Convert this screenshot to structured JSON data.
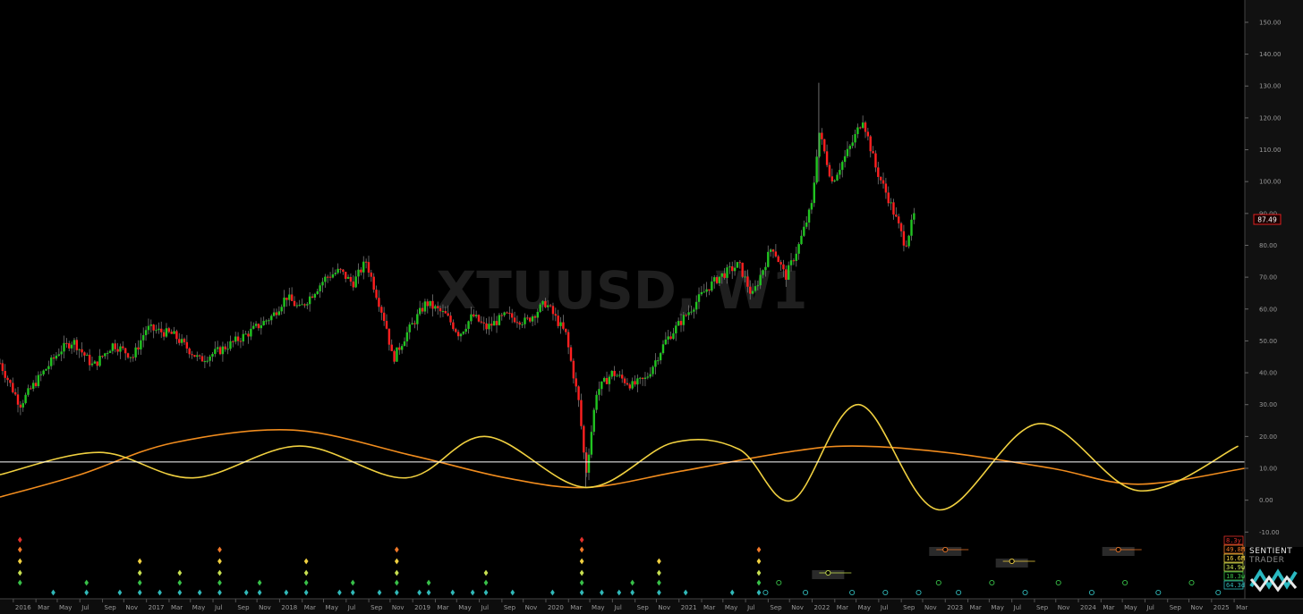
{
  "watermark": "XTUUSD, W1",
  "last_price": "87.49",
  "brand": {
    "line1": "SENTIENT",
    "line2": "TRADER"
  },
  "chart_data": {
    "type": "line",
    "symbol": "XTUUSD",
    "timeframe": "W1",
    "y_axis": {
      "side": "right",
      "ylim": [
        -13,
        157
      ],
      "ticks": [
        "150.00",
        "140.00",
        "130.00",
        "120.00",
        "110.00",
        "100.00",
        "90.00",
        "80.00",
        "70.00",
        "60.00",
        "50.00",
        "40.00",
        "30.00",
        "20.00",
        "10.00",
        "0.00",
        "-10.00"
      ]
    },
    "x_axis": {
      "range_years": [
        2015.9,
        2025.25
      ],
      "ticks": [
        {
          "t": 2016.0,
          "label": "2016"
        },
        {
          "t": 2016.17,
          "label": "Mar"
        },
        {
          "t": 2016.33,
          "label": "May"
        },
        {
          "t": 2016.5,
          "label": "Jul"
        },
        {
          "t": 2016.67,
          "label": "Sep"
        },
        {
          "t": 2016.83,
          "label": "Nov"
        },
        {
          "t": 2017.0,
          "label": "2017"
        },
        {
          "t": 2017.17,
          "label": "Mar"
        },
        {
          "t": 2017.33,
          "label": "May"
        },
        {
          "t": 2017.5,
          "label": "Jul"
        },
        {
          "t": 2017.67,
          "label": "Sep"
        },
        {
          "t": 2017.83,
          "label": "Nov"
        },
        {
          "t": 2018.0,
          "label": "2018"
        },
        {
          "t": 2018.17,
          "label": "Mar"
        },
        {
          "t": 2018.33,
          "label": "May"
        },
        {
          "t": 2018.5,
          "label": "Jul"
        },
        {
          "t": 2018.67,
          "label": "Sep"
        },
        {
          "t": 2018.83,
          "label": "Nov"
        },
        {
          "t": 2019.0,
          "label": "2019"
        },
        {
          "t": 2019.17,
          "label": "Mar"
        },
        {
          "t": 2019.33,
          "label": "May"
        },
        {
          "t": 2019.5,
          "label": "Jul"
        },
        {
          "t": 2019.67,
          "label": "Sep"
        },
        {
          "t": 2019.83,
          "label": "Nov"
        },
        {
          "t": 2020.0,
          "label": "2020"
        },
        {
          "t": 2020.17,
          "label": "Mar"
        },
        {
          "t": 2020.33,
          "label": "May"
        },
        {
          "t": 2020.5,
          "label": "Jul"
        },
        {
          "t": 2020.67,
          "label": "Sep"
        },
        {
          "t": 2020.83,
          "label": "Nov"
        },
        {
          "t": 2021.0,
          "label": "2021"
        },
        {
          "t": 2021.17,
          "label": "Mar"
        },
        {
          "t": 2021.33,
          "label": "May"
        },
        {
          "t": 2021.5,
          "label": "Jul"
        },
        {
          "t": 2021.67,
          "label": "Sep"
        },
        {
          "t": 2021.83,
          "label": "Nov"
        },
        {
          "t": 2022.0,
          "label": "2022"
        },
        {
          "t": 2022.17,
          "label": "Mar"
        },
        {
          "t": 2022.33,
          "label": "May"
        },
        {
          "t": 2022.5,
          "label": "Jul"
        },
        {
          "t": 2022.67,
          "label": "Sep"
        },
        {
          "t": 2022.83,
          "label": "Nov"
        },
        {
          "t": 2023.0,
          "label": "2023"
        },
        {
          "t": 2023.17,
          "label": "Mar"
        },
        {
          "t": 2023.33,
          "label": "May"
        },
        {
          "t": 2023.5,
          "label": "Jul"
        },
        {
          "t": 2023.67,
          "label": "Sep"
        },
        {
          "t": 2023.83,
          "label": "Nov"
        },
        {
          "t": 2024.0,
          "label": "2024"
        },
        {
          "t": 2024.17,
          "label": "Mar"
        },
        {
          "t": 2024.33,
          "label": "May"
        },
        {
          "t": 2024.5,
          "label": "Jul"
        },
        {
          "t": 2024.67,
          "label": "Sep"
        },
        {
          "t": 2024.83,
          "label": "Nov"
        },
        {
          "t": 2025.0,
          "label": "2025"
        },
        {
          "t": 2025.17,
          "label": "Mar"
        }
      ]
    },
    "price_anchors": [
      [
        2015.9,
        43
      ],
      [
        2016.05,
        30
      ],
      [
        2016.15,
        36
      ],
      [
        2016.35,
        47
      ],
      [
        2016.45,
        50
      ],
      [
        2016.6,
        42
      ],
      [
        2016.75,
        49
      ],
      [
        2016.9,
        45
      ],
      [
        2017.0,
        54
      ],
      [
        2017.2,
        52
      ],
      [
        2017.4,
        44
      ],
      [
        2017.55,
        47
      ],
      [
        2017.75,
        52
      ],
      [
        2017.95,
        58
      ],
      [
        2018.05,
        64
      ],
      [
        2018.15,
        60
      ],
      [
        2018.35,
        70
      ],
      [
        2018.45,
        72
      ],
      [
        2018.55,
        68
      ],
      [
        2018.65,
        75
      ],
      [
        2018.8,
        55
      ],
      [
        2018.85,
        44
      ],
      [
        2018.95,
        52
      ],
      [
        2019.1,
        62
      ],
      [
        2019.25,
        58
      ],
      [
        2019.35,
        52
      ],
      [
        2019.45,
        58
      ],
      [
        2019.55,
        54
      ],
      [
        2019.7,
        58
      ],
      [
        2019.85,
        56
      ],
      [
        2020.0,
        62
      ],
      [
        2020.15,
        52
      ],
      [
        2020.25,
        30
      ],
      [
        2020.3,
        8
      ],
      [
        2020.38,
        34
      ],
      [
        2020.5,
        40
      ],
      [
        2020.65,
        36
      ],
      [
        2020.75,
        38
      ],
      [
        2020.9,
        50
      ],
      [
        2021.05,
        58
      ],
      [
        2021.2,
        66
      ],
      [
        2021.3,
        70
      ],
      [
        2021.45,
        74
      ],
      [
        2021.55,
        64
      ],
      [
        2021.7,
        80
      ],
      [
        2021.8,
        70
      ],
      [
        2021.9,
        80
      ],
      [
        2022.0,
        93
      ],
      [
        2022.05,
        116
      ],
      [
        2022.15,
        100
      ],
      [
        2022.3,
        112
      ],
      [
        2022.38,
        120
      ],
      [
        2022.48,
        104
      ],
      [
        2022.58,
        94
      ],
      [
        2022.65,
        86
      ],
      [
        2022.7,
        80
      ],
      [
        2022.77,
        90
      ]
    ],
    "price_color": "#21c421",
    "down_color": "#ff2020",
    "cycles": [
      {
        "color": "#f08c1e",
        "points": [
          [
            2015.9,
            1
          ],
          [
            2016.5,
            8
          ],
          [
            2017.2,
            18
          ],
          [
            2018.1,
            22
          ],
          [
            2019.0,
            14
          ],
          [
            2019.7,
            7
          ],
          [
            2020.3,
            4
          ],
          [
            2021.0,
            9
          ],
          [
            2021.8,
            15
          ],
          [
            2022.3,
            17
          ],
          [
            2023.0,
            15
          ],
          [
            2023.8,
            10
          ],
          [
            2024.45,
            5
          ],
          [
            2025.25,
            10
          ]
        ]
      },
      {
        "color": "#f0d040",
        "points": [
          [
            2015.9,
            8
          ],
          [
            2016.65,
            15
          ],
          [
            2017.35,
            7
          ],
          [
            2018.15,
            17
          ],
          [
            2018.95,
            7
          ],
          [
            2019.55,
            20
          ],
          [
            2020.3,
            4
          ],
          [
            2020.95,
            18
          ],
          [
            2021.45,
            16
          ],
          [
            2021.85,
            0
          ],
          [
            2022.35,
            30
          ],
          [
            2022.95,
            -3
          ],
          [
            2023.7,
            24
          ],
          [
            2024.45,
            3
          ],
          [
            2025.2,
            17
          ]
        ]
      },
      {
        "color": "#ffffff",
        "points": [
          [
            2015.9,
            12
          ],
          [
            2025.25,
            12
          ]
        ]
      }
    ],
    "cycle_legend": [
      {
        "label": "8.3y",
        "color": "#e0302a"
      },
      {
        "label": "49.8M",
        "color": "#f07828"
      },
      {
        "label": "16.6M",
        "color": "#f0d040"
      },
      {
        "label": "34.9w",
        "color": "#c8e050"
      },
      {
        "label": "18.3w",
        "color": "#38c048"
      },
      {
        "label": "64.3d",
        "color": "#30b8b8"
      }
    ],
    "diamond_markers": [
      {
        "t": 2016.05,
        "levels": [
          0,
          1,
          2,
          3,
          4
        ]
      },
      {
        "t": 2016.3,
        "levels": [
          5
        ]
      },
      {
        "t": 2016.55,
        "levels": [
          4,
          5
        ]
      },
      {
        "t": 2016.8,
        "levels": [
          5
        ]
      },
      {
        "t": 2016.95,
        "levels": [
          2,
          3,
          4,
          5
        ]
      },
      {
        "t": 2017.1,
        "levels": [
          5
        ]
      },
      {
        "t": 2017.25,
        "levels": [
          3,
          4,
          5
        ]
      },
      {
        "t": 2017.4,
        "levels": [
          5
        ]
      },
      {
        "t": 2017.55,
        "levels": [
          1,
          2,
          3,
          4,
          5
        ]
      },
      {
        "t": 2017.75,
        "levels": [
          5
        ]
      },
      {
        "t": 2017.85,
        "levels": [
          4,
          5
        ]
      },
      {
        "t": 2018.05,
        "levels": [
          5
        ]
      },
      {
        "t": 2018.2,
        "levels": [
          2,
          3,
          4,
          5
        ]
      },
      {
        "t": 2018.45,
        "levels": [
          5
        ]
      },
      {
        "t": 2018.55,
        "levels": [
          4,
          5
        ]
      },
      {
        "t": 2018.75,
        "levels": [
          5
        ]
      },
      {
        "t": 2018.88,
        "levels": [
          1,
          2,
          3,
          4,
          5
        ]
      },
      {
        "t": 2019.05,
        "levels": [
          5
        ]
      },
      {
        "t": 2019.12,
        "levels": [
          4,
          5
        ]
      },
      {
        "t": 2019.3,
        "levels": [
          5
        ]
      },
      {
        "t": 2019.45,
        "levels": [
          5
        ]
      },
      {
        "t": 2019.55,
        "levels": [
          3,
          4,
          5
        ]
      },
      {
        "t": 2019.75,
        "levels": [
          5
        ]
      },
      {
        "t": 2020.05,
        "levels": [
          5
        ]
      },
      {
        "t": 2020.27,
        "levels": [
          0,
          1,
          2,
          3,
          4,
          5
        ]
      },
      {
        "t": 2020.42,
        "levels": [
          5
        ]
      },
      {
        "t": 2020.55,
        "levels": [
          5
        ]
      },
      {
        "t": 2020.65,
        "levels": [
          4,
          5
        ]
      },
      {
        "t": 2020.85,
        "levels": [
          2,
          3,
          4,
          5
        ]
      },
      {
        "t": 2021.05,
        "levels": [
          5
        ]
      },
      {
        "t": 2021.4,
        "levels": [
          5
        ]
      },
      {
        "t": 2021.6,
        "levels": [
          1,
          2,
          3,
          4,
          5
        ]
      }
    ],
    "projected_markers": [
      {
        "t": 2021.65,
        "level": 5
      },
      {
        "t": 2021.75,
        "level": 4
      },
      {
        "t": 2021.95,
        "level": 5
      },
      {
        "t": 2022.12,
        "level": 3
      },
      {
        "t": 2022.3,
        "level": 5
      },
      {
        "t": 2022.55,
        "level": 5
      },
      {
        "t": 2022.8,
        "level": 5
      },
      {
        "t": 2022.95,
        "level": 4
      },
      {
        "t": 2023.1,
        "level": 5
      },
      {
        "t": 2023.35,
        "level": 4
      },
      {
        "t": 2023.6,
        "level": 5
      },
      {
        "t": 2023.85,
        "level": 4
      },
      {
        "t": 2024.1,
        "level": 5
      },
      {
        "t": 2024.35,
        "level": 4
      },
      {
        "t": 2024.6,
        "level": 5
      },
      {
        "t": 2024.85,
        "level": 4
      },
      {
        "t": 2025.05,
        "level": 5
      },
      {
        "t": 2023.0,
        "level": 1
      },
      {
        "t": 2023.5,
        "level": 2
      },
      {
        "t": 2024.3,
        "level": 1
      }
    ]
  }
}
